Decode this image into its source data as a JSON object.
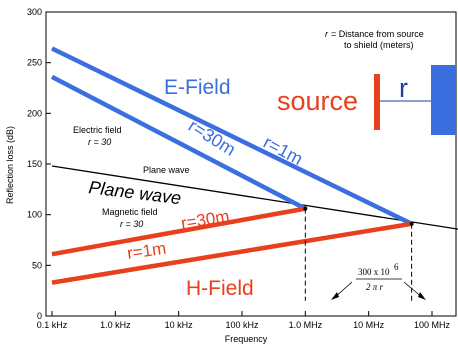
{
  "chart_data": {
    "type": "line",
    "title": "",
    "xlabel": "Frequency",
    "ylabel": "Reflection loss (dB)",
    "x_scale": "log",
    "xlim": [
      100,
      1000000000
    ],
    "ylim": [
      0,
      300
    ],
    "grid": false,
    "y_ticks": [
      {
        "value": 0,
        "label": "0"
      },
      {
        "value": 50,
        "label": "50"
      },
      {
        "value": 100,
        "label": "100"
      },
      {
        "value": 150,
        "label": "150"
      },
      {
        "value": 200,
        "label": "200"
      },
      {
        "value": 250,
        "label": "250"
      },
      {
        "value": 300,
        "label": "300"
      }
    ],
    "x_ticks": [
      {
        "value": 100,
        "label": "0.1 kHz"
      },
      {
        "value": 1000,
        "label": "1.0 kHz"
      },
      {
        "value": 10000,
        "label": "10 kHz"
      },
      {
        "value": 100000,
        "label": "100 kHz"
      },
      {
        "value": 1000000,
        "label": "1.0 MHz"
      },
      {
        "value": 10000000,
        "label": "10 MHz"
      },
      {
        "value": 100000000,
        "label": "100 MHz"
      }
    ],
    "series": [
      {
        "key": "plane_wave",
        "color": "#000000",
        "width": 1.3,
        "x": [
          100,
          1000000000
        ],
        "y": [
          148,
          80
        ]
      },
      {
        "key": "e_field_r30",
        "color": "#000000",
        "width": 1.2,
        "x": [
          100,
          1000000
        ],
        "y": [
          236,
          106
        ]
      },
      {
        "key": "e_field_r1",
        "color": "#000000",
        "width": 1.2,
        "x": [
          100,
          47700000
        ],
        "y": [
          264,
          91
        ]
      },
      {
        "key": "h_field_r30",
        "color": "#000000",
        "width": 1.2,
        "x": [
          100,
          1000000
        ],
        "y": [
          61,
          106
        ]
      },
      {
        "key": "h_field_r1",
        "color": "#000000",
        "width": 1.2,
        "x": [
          100,
          47700000
        ],
        "y": [
          33,
          91
        ]
      }
    ],
    "overlays": [
      {
        "key": "e_field_r30_hl",
        "color": "#3b6fe0",
        "width": 4.5,
        "x": [
          100,
          1000000
        ],
        "y": [
          236,
          106
        ]
      },
      {
        "key": "e_field_r1_hl",
        "color": "#3b6fe0",
        "width": 4.5,
        "x": [
          100,
          47700000
        ],
        "y": [
          264,
          91
        ]
      },
      {
        "key": "h_field_r30_hl",
        "color": "#e8401c",
        "width": 4.5,
        "x": [
          100,
          1000000
        ],
        "y": [
          61,
          106
        ]
      },
      {
        "key": "h_field_r1_hl",
        "color": "#e8401c",
        "width": 4.5,
        "x": [
          100,
          47700000
        ],
        "y": [
          33,
          91
        ]
      }
    ],
    "transition_markers": [
      {
        "key": "r30",
        "x": 1000000,
        "y_from": 106,
        "y_to": 15
      },
      {
        "key": "r1",
        "x": 47700000,
        "y_from": 91,
        "y_to": 15
      }
    ],
    "annotations": {
      "distance_note_line1": "= Distance from source",
      "distance_note_var": "r",
      "distance_note_line2": "to shield (meters)",
      "e_field": "E-Field",
      "h_field": "H-Field",
      "plane_wave_big": "Plane wave",
      "plane_wave_small": "Plane wave",
      "r_1m_top": "r=1m",
      "r_30m_top": "r=30m",
      "r_30m_bottom": "r=30m",
      "r_1m_bottom": "r=1m",
      "electric_field": "Electric field",
      "electric_field_r": "r = 30",
      "magnetic_field": "Magnetic field",
      "magnetic_field_r": "r = 30",
      "source": "source",
      "r_symbol": "r",
      "formula_num": "300 x 10",
      "formula_exp": "6",
      "formula_den": "2 π r"
    },
    "colors": {
      "e_field": "#3b6fe0",
      "h_field": "#e8401c",
      "shield": "#3b6fe0",
      "source_bar": "#e8401c",
      "r_label": "#1e3fa0"
    }
  }
}
